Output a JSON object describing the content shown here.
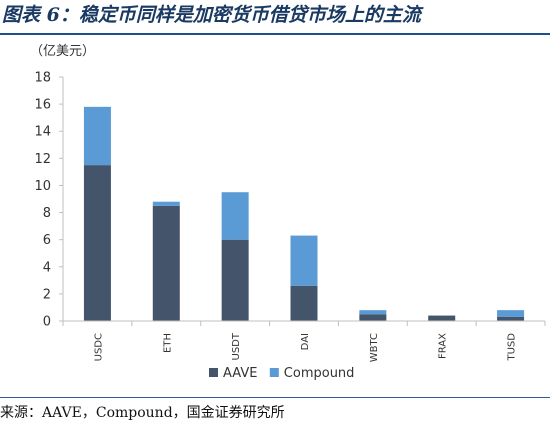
{
  "figure_title": "图表 6：稳定币同样是加密货币借贷市场上的主流",
  "source_note": "来源：AAVE，Compound，国金证券研究所",
  "colors": {
    "aave": "#44546a",
    "compound": "#5b9bd5",
    "axis": "#bfbfbf",
    "title": "#1a3a63",
    "rule": "#1f4e8c"
  },
  "chart_data": {
    "type": "bar",
    "stacked": true,
    "unit_label": "（亿美元）",
    "categories": [
      "USDC",
      "ETH",
      "USDT",
      "DAI",
      "WBTC",
      "FRAX",
      "TUSD"
    ],
    "series": [
      {
        "name": "AAVE",
        "values": [
          11.5,
          8.5,
          6.0,
          2.6,
          0.5,
          0.4,
          0.3
        ]
      },
      {
        "name": "Compound",
        "values": [
          4.3,
          0.3,
          3.5,
          3.7,
          0.3,
          0.0,
          0.5
        ]
      }
    ],
    "ylim": [
      0,
      18
    ],
    "yticks": [
      0,
      2,
      4,
      6,
      8,
      10,
      12,
      14,
      16,
      18
    ],
    "grid": false,
    "legend_position": "bottom"
  }
}
